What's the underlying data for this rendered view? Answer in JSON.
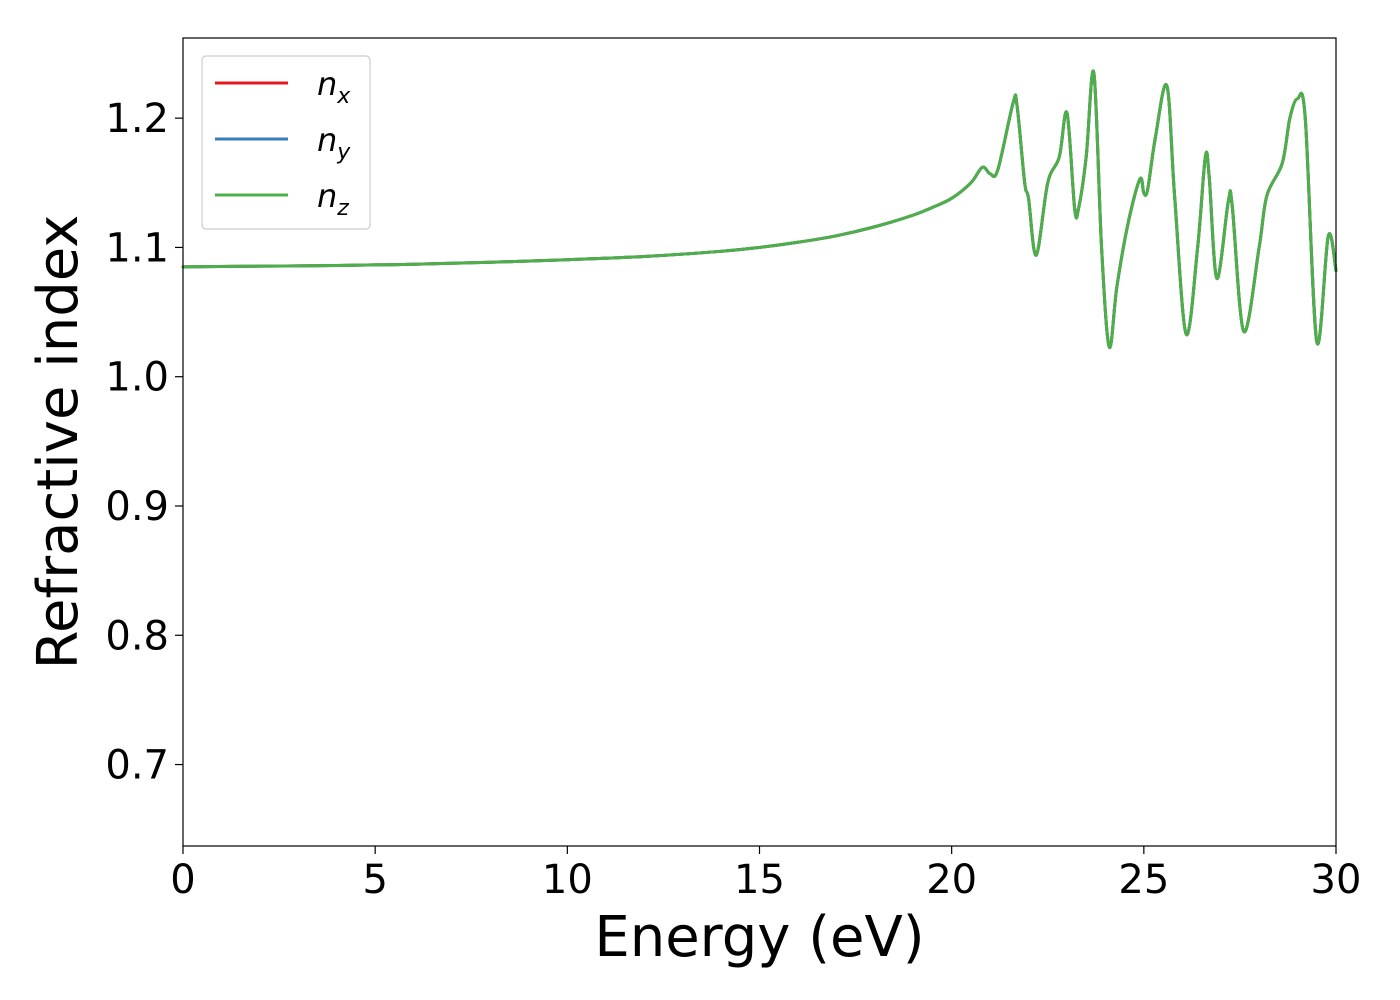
{
  "chart_data": {
    "type": "line",
    "xlabel": "Energy (eV)",
    "ylabel": "Refractive index",
    "xlim": [
      0,
      30
    ],
    "ylim": [
      0.637,
      1.262
    ],
    "xticks": [
      0,
      5,
      10,
      15,
      20,
      25,
      30
    ],
    "xtick_labels": [
      "0",
      "5",
      "10",
      "15",
      "20",
      "25",
      "30"
    ],
    "yticks": [
      0.7,
      0.8,
      0.9,
      1.0,
      1.1,
      1.2
    ],
    "ytick_labels": [
      "0.7",
      "0.8",
      "0.9",
      "1.0",
      "1.1",
      "1.2"
    ],
    "grid": false,
    "legend_position": "top-left",
    "series": [
      {
        "name": "n_x",
        "label_base": "n",
        "label_sub": "x",
        "color": "#e41a1c",
        "x": [
          0,
          2,
          4,
          6,
          8,
          10,
          12,
          14,
          15,
          16,
          17,
          18,
          19,
          19.5,
          20,
          20.5,
          20.8,
          21.0,
          21.2,
          21.6,
          21.7,
          21.9,
          22.0,
          22.2,
          22.5,
          22.8,
          23.0,
          23.2,
          23.3,
          23.5,
          23.7,
          23.9,
          24.1,
          24.3,
          24.6,
          24.9,
          25.0,
          25.1,
          25.3,
          25.6,
          25.8,
          26.1,
          26.4,
          26.6,
          26.7,
          26.9,
          27.2,
          27.3,
          27.6,
          28.0,
          28.2,
          28.6,
          28.8,
          29.0,
          29.2,
          29.5,
          29.8,
          30.0
        ],
        "values": [
          1.085,
          1.0855,
          1.086,
          1.087,
          1.0885,
          1.0905,
          1.093,
          1.097,
          1.1,
          1.104,
          1.109,
          1.116,
          1.125,
          1.131,
          1.138,
          1.15,
          1.162,
          1.157,
          1.16,
          1.212,
          1.21,
          1.15,
          1.138,
          1.094,
          1.15,
          1.17,
          1.204,
          1.13,
          1.13,
          1.17,
          1.235,
          1.1,
          1.023,
          1.07,
          1.12,
          1.153,
          1.142,
          1.145,
          1.185,
          1.225,
          1.14,
          1.033,
          1.1,
          1.17,
          1.155,
          1.076,
          1.136,
          1.132,
          1.035,
          1.1,
          1.14,
          1.165,
          1.2,
          1.215,
          1.2,
          1.027,
          1.109,
          1.082
        ]
      },
      {
        "name": "n_y",
        "label_base": "n",
        "label_sub": "y",
        "color": "#377eb8",
        "x": [
          0,
          2,
          4,
          6,
          8,
          10,
          12,
          14,
          15,
          16,
          17,
          18,
          19,
          19.5,
          20,
          20.5,
          20.8,
          21.0,
          21.2,
          21.6,
          21.7,
          21.9,
          22.0,
          22.2,
          22.5,
          22.8,
          23.0,
          23.2,
          23.3,
          23.5,
          23.7,
          23.9,
          24.1,
          24.3,
          24.6,
          24.9,
          25.0,
          25.1,
          25.3,
          25.6,
          25.8,
          26.1,
          26.4,
          26.6,
          26.7,
          26.9,
          27.2,
          27.3,
          27.6,
          28.0,
          28.2,
          28.6,
          28.8,
          29.0,
          29.2,
          29.5,
          29.8,
          30.0
        ],
        "values": [
          1.085,
          1.0855,
          1.086,
          1.087,
          1.0885,
          1.0905,
          1.093,
          1.097,
          1.1,
          1.104,
          1.109,
          1.116,
          1.125,
          1.131,
          1.138,
          1.15,
          1.162,
          1.157,
          1.16,
          1.212,
          1.21,
          1.15,
          1.138,
          1.094,
          1.15,
          1.17,
          1.204,
          1.13,
          1.13,
          1.17,
          1.235,
          1.1,
          1.023,
          1.07,
          1.12,
          1.153,
          1.142,
          1.145,
          1.185,
          1.225,
          1.14,
          1.033,
          1.1,
          1.17,
          1.155,
          1.076,
          1.136,
          1.132,
          1.035,
          1.1,
          1.14,
          1.165,
          1.2,
          1.215,
          1.2,
          1.027,
          1.109,
          1.082
        ]
      },
      {
        "name": "n_z",
        "label_base": "n",
        "label_sub": "z",
        "color": "#4daf4a",
        "x": [
          0,
          2,
          4,
          6,
          8,
          10,
          12,
          14,
          15,
          16,
          17,
          18,
          19,
          19.5,
          20,
          20.5,
          20.8,
          21.0,
          21.2,
          21.6,
          21.7,
          21.9,
          22.0,
          22.2,
          22.5,
          22.8,
          23.0,
          23.2,
          23.3,
          23.5,
          23.7,
          23.9,
          24.1,
          24.3,
          24.6,
          24.9,
          25.0,
          25.1,
          25.3,
          25.6,
          25.8,
          26.1,
          26.4,
          26.6,
          26.7,
          26.9,
          27.2,
          27.3,
          27.6,
          28.0,
          28.2,
          28.6,
          28.8,
          29.0,
          29.2,
          29.5,
          29.8,
          30.0
        ],
        "values": [
          1.085,
          1.0855,
          1.086,
          1.087,
          1.0885,
          1.0905,
          1.093,
          1.097,
          1.1,
          1.104,
          1.109,
          1.116,
          1.125,
          1.131,
          1.138,
          1.15,
          1.162,
          1.157,
          1.16,
          1.212,
          1.21,
          1.15,
          1.138,
          1.094,
          1.15,
          1.17,
          1.204,
          1.13,
          1.13,
          1.17,
          1.235,
          1.1,
          1.023,
          1.07,
          1.12,
          1.153,
          1.142,
          1.145,
          1.185,
          1.225,
          1.14,
          1.033,
          1.1,
          1.17,
          1.155,
          1.076,
          1.136,
          1.132,
          1.035,
          1.1,
          1.14,
          1.165,
          1.2,
          1.215,
          1.2,
          1.027,
          1.109,
          1.082
        ]
      }
    ]
  }
}
